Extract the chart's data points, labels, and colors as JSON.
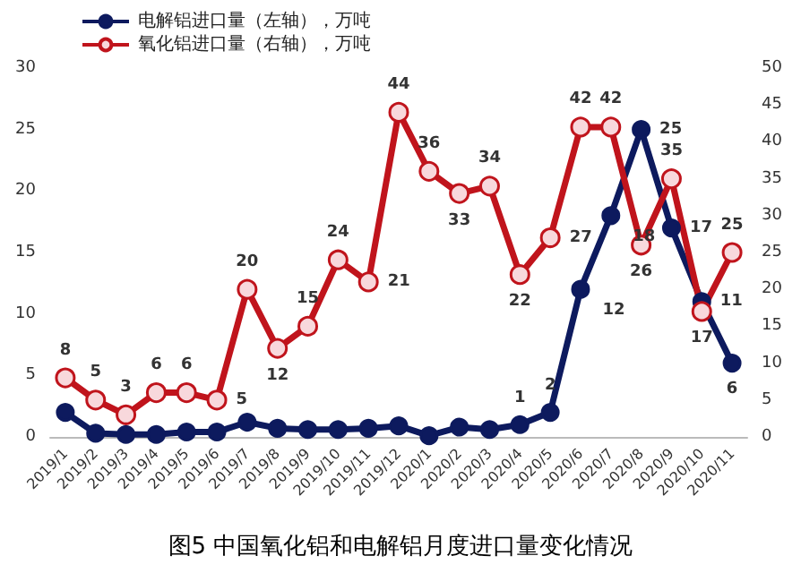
{
  "chart_data": {
    "type": "line",
    "categories": [
      "2019/1",
      "2019/2",
      "2019/3",
      "2019/4",
      "2019/5",
      "2019/6",
      "2019/7",
      "2019/8",
      "2019/9",
      "2019/10",
      "2019/11",
      "2019/12",
      "2020/1",
      "2020/2",
      "2020/3",
      "2020/4",
      "2020/5",
      "2020/6",
      "2020/7",
      "2020/8",
      "2020/9",
      "2020/10",
      "2020/11"
    ],
    "series": [
      {
        "name": "电解铝进口量（左轴），万吨",
        "color": "#0d1a5e",
        "values": [
          2,
          0.3,
          0.2,
          0.2,
          0.4,
          0.4,
          1.2,
          0.7,
          0.6,
          0.6,
          0.7,
          0.9,
          0.1,
          0.8,
          0.6,
          1,
          2,
          12,
          18,
          25,
          17,
          11,
          6
        ],
        "value_labels": [
          null,
          null,
          null,
          null,
          null,
          null,
          null,
          null,
          null,
          null,
          null,
          null,
          null,
          null,
          null,
          "1",
          "2",
          "12",
          "18",
          "25",
          "17",
          "11",
          "6"
        ]
      },
      {
        "name": "氧化铝进口量（右轴），万吨",
        "color": "#c0141c",
        "axis": "y2",
        "values": [
          8,
          5,
          3,
          6,
          6,
          5,
          20,
          12,
          15,
          24,
          21,
          44,
          36,
          33,
          34,
          22,
          27,
          42,
          42,
          26,
          35,
          17,
          25
        ],
        "value_labels": [
          "8",
          "5",
          "3",
          "6",
          "6",
          "5",
          "20",
          "12",
          "15",
          "24",
          "21",
          "44",
          "36",
          "33",
          "34",
          "22",
          "27",
          "42",
          "42",
          "26",
          "35",
          "17",
          "25"
        ]
      }
    ],
    "ylim": [
      0,
      30
    ],
    "yticks": [
      0,
      5,
      10,
      15,
      20,
      25,
      30
    ],
    "y2lim": [
      0,
      50
    ],
    "y2ticks": [
      0,
      5,
      10,
      15,
      20,
      25,
      30,
      35,
      40,
      45,
      50
    ],
    "legend": "top left",
    "marker": "circle",
    "grid": false,
    "annotations": [
      "图5 中国氧化铝和电解铝月度进口量变化情况"
    ]
  }
}
